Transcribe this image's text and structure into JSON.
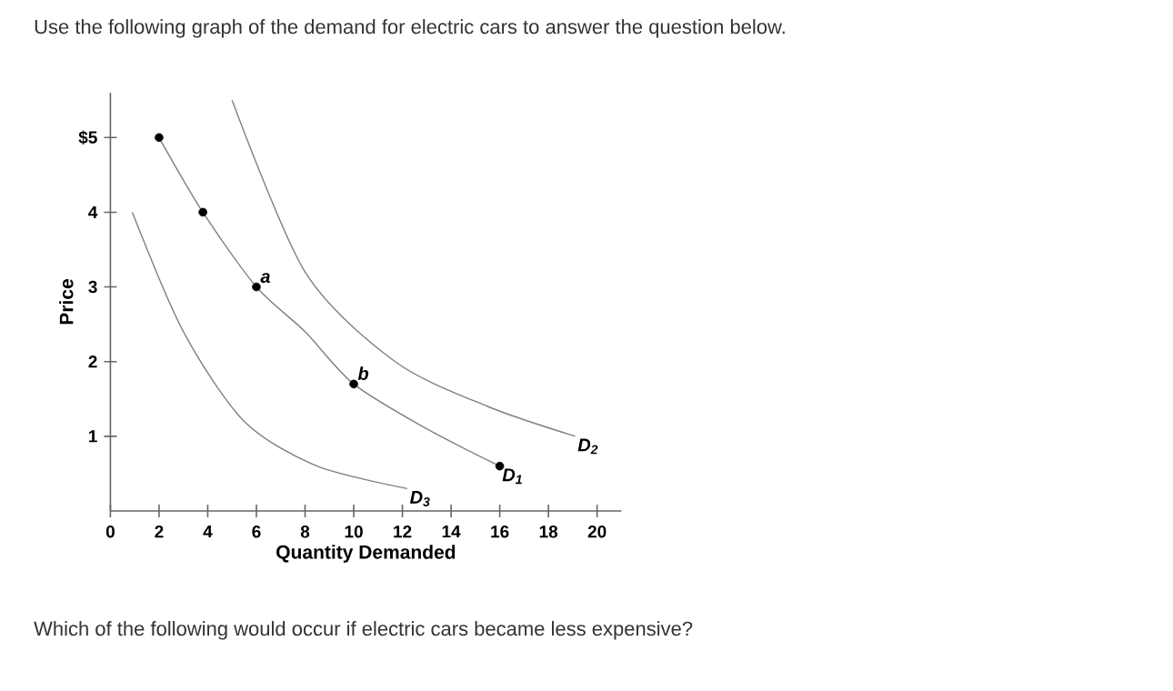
{
  "chart_data": {
    "type": "line",
    "title": "Use the following graph of the demand for electric cars to answer the question below.",
    "xlabel": "Quantity Demanded",
    "ylabel": "Price",
    "xlim": [
      0,
      21
    ],
    "ylim": [
      0,
      5.6
    ],
    "xticks": [
      0,
      2,
      4,
      6,
      8,
      10,
      12,
      14,
      16,
      18,
      20
    ],
    "yticks": [
      1,
      2,
      3,
      4,
      {
        "value": 5,
        "label": "$5"
      }
    ],
    "series": [
      {
        "name": "D$_{1}$",
        "color": "#808080",
        "x": [
          2,
          3.8,
          6,
          8,
          10,
          13,
          16
        ],
        "values": [
          5,
          4,
          3,
          2.4,
          1.7,
          1.1,
          0.6
        ]
      },
      {
        "name": "D$_{2}$",
        "color": "#808080",
        "x": [
          5,
          8,
          11.7,
          15.5,
          19.1
        ],
        "values": [
          5.5,
          3.2,
          2,
          1.4,
          1
        ]
      },
      {
        "name": "D$_{3}$",
        "color": "#808080",
        "x": [
          0.9,
          3,
          5.5,
          8.5,
          12.2
        ],
        "values": [
          4,
          2.4,
          1.2,
          0.6,
          0.3
        ]
      },
      {
        "type": "scatter",
        "marker": "circle",
        "color": "#000000",
        "x": [
          2,
          3.8,
          6,
          10,
          16
        ],
        "values": [
          5,
          4,
          3,
          1.7,
          0.6
        ]
      }
    ],
    "annotations": [
      {
        "text": "a",
        "x": 6,
        "y": 3
      },
      {
        "text": "b",
        "x": 10,
        "y": 1.7
      },
      "Which of the following would occur if electric cars became less expensive?"
    ]
  }
}
